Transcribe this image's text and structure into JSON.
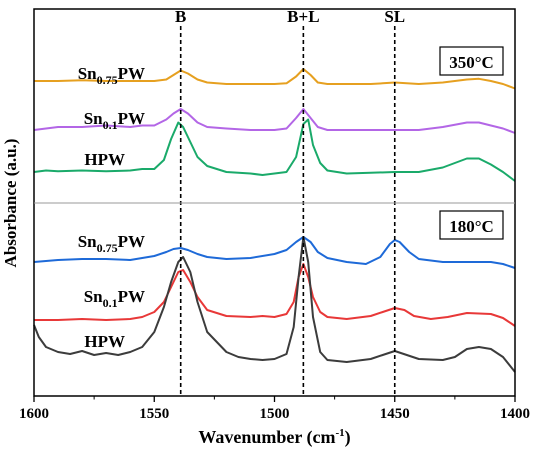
{
  "chart_data": {
    "type": "line",
    "xlabel": "Wavenumber (cm",
    "xlabel_sup": "-1",
    "xlabel_tail": ")",
    "ylabel": "Absorbance (a.u.)",
    "xlim": [
      1600,
      1400
    ],
    "x_reversed": true,
    "xticks": [
      1600,
      1550,
      1500,
      1450,
      1400
    ],
    "y_tick_labels": false,
    "grid": false,
    "peak_markers": [
      {
        "label": "B",
        "x": 1539
      },
      {
        "label": "B+L",
        "x": 1488
      },
      {
        "label": "SL",
        "x": 1450
      }
    ],
    "panels": [
      {
        "temperature_label": "350°C",
        "series": [
          {
            "name_base": "Sn",
            "name_sub": "0.75",
            "name_tail": "PW",
            "color": "#E6A020",
            "x": [
              1600,
              1590,
              1580,
              1570,
              1560,
              1550,
              1545,
              1542,
              1539,
              1536,
              1532,
              1528,
              1520,
              1510,
              1500,
              1495,
              1491,
              1488,
              1485,
              1482,
              1478,
              1470,
              1460,
              1455,
              1450,
              1445,
              1440,
              1430,
              1420,
              1415,
              1410,
              1405,
              1400
            ],
            "y": [
              0.02,
              0.02,
              0.025,
              0.02,
              0.02,
              0.02,
              0.03,
              0.06,
              0.09,
              0.07,
              0.03,
              0.01,
              0.0,
              0.0,
              0.0,
              0.005,
              0.05,
              0.1,
              0.06,
              0.01,
              0.0,
              0.0,
              0.0,
              0.005,
              0.01,
              0.005,
              0.0,
              0.01,
              0.03,
              0.035,
              0.02,
              0.0,
              -0.03
            ]
          },
          {
            "name_base": "Sn",
            "name_sub": "0.1",
            "name_tail": "PW",
            "color": "#B366E6",
            "x": [
              1600,
              1590,
              1580,
              1570,
              1560,
              1555,
              1550,
              1545,
              1542,
              1539,
              1536,
              1532,
              1528,
              1520,
              1510,
              1500,
              1495,
              1491,
              1488,
              1485,
              1482,
              1478,
              1470,
              1460,
              1450,
              1440,
              1430,
              1420,
              1415,
              1410,
              1405,
              1400
            ],
            "y": [
              0.0,
              0.02,
              0.02,
              0.03,
              0.02,
              0.03,
              0.03,
              0.07,
              0.11,
              0.14,
              0.11,
              0.05,
              0.02,
              0.01,
              0.0,
              0.0,
              0.01,
              0.08,
              0.14,
              0.08,
              0.02,
              0.0,
              0.0,
              0.0,
              0.0,
              0.0,
              0.02,
              0.05,
              0.05,
              0.03,
              0.01,
              -0.02
            ]
          },
          {
            "name_base": "HPW",
            "name_sub": "",
            "name_tail": "",
            "color": "#1AAA6A",
            "x": [
              1600,
              1595,
              1590,
              1580,
              1570,
              1560,
              1555,
              1550,
              1546,
              1543,
              1540,
              1538,
              1535,
              1532,
              1528,
              1520,
              1510,
              1505,
              1500,
              1495,
              1491,
              1488,
              1486,
              1484,
              1481,
              1478,
              1470,
              1460,
              1450,
              1440,
              1430,
              1420,
              1415,
              1410,
              1405,
              1400
            ],
            "y": [
              0.0,
              0.01,
              0.005,
              0.01,
              0.005,
              0.01,
              0.02,
              0.02,
              0.08,
              0.22,
              0.33,
              0.3,
              0.2,
              0.1,
              0.04,
              0.0,
              -0.01,
              -0.02,
              -0.01,
              0.0,
              0.1,
              0.32,
              0.35,
              0.18,
              0.06,
              0.01,
              -0.01,
              -0.005,
              0.0,
              0.0,
              0.03,
              0.09,
              0.09,
              0.05,
              0.0,
              -0.06
            ]
          }
        ]
      },
      {
        "temperature_label": "180°C",
        "series": [
          {
            "name_base": "Sn",
            "name_sub": "0.75",
            "name_tail": "PW",
            "color": "#1E6AD8",
            "x": [
              1600,
              1590,
              1580,
              1570,
              1560,
              1555,
              1550,
              1545,
              1542,
              1539,
              1536,
              1532,
              1528,
              1520,
              1510,
              1500,
              1495,
              1491,
              1488,
              1485,
              1482,
              1478,
              1470,
              1462,
              1456,
              1452,
              1450,
              1448,
              1444,
              1440,
              1430,
              1420,
              1410,
              1405,
              1400
            ],
            "y": [
              0.0,
              0.02,
              0.03,
              0.03,
              0.02,
              0.04,
              0.06,
              0.1,
              0.13,
              0.14,
              0.12,
              0.08,
              0.05,
              0.03,
              0.04,
              0.08,
              0.12,
              0.2,
              0.25,
              0.2,
              0.1,
              0.04,
              0.0,
              -0.02,
              0.05,
              0.18,
              0.22,
              0.2,
              0.1,
              0.03,
              0.0,
              0.0,
              0.0,
              -0.02,
              -0.06
            ]
          },
          {
            "name_base": "Sn",
            "name_sub": "0.1",
            "name_tail": "PW",
            "color": "#E83838",
            "x": [
              1600,
              1590,
              1580,
              1570,
              1560,
              1555,
              1550,
              1546,
              1543,
              1540,
              1538,
              1535,
              1532,
              1528,
              1520,
              1510,
              1505,
              1500,
              1495,
              1492,
              1490,
              1488,
              1486,
              1484,
              1481,
              1478,
              1470,
              1460,
              1455,
              1450,
              1446,
              1442,
              1435,
              1428,
              1420,
              1410,
              1405,
              1400
            ],
            "y": [
              0.02,
              0.02,
              0.03,
              0.02,
              0.03,
              0.05,
              0.1,
              0.2,
              0.35,
              0.5,
              0.52,
              0.4,
              0.25,
              0.12,
              0.06,
              0.05,
              0.06,
              0.05,
              0.08,
              0.2,
              0.45,
              0.58,
              0.45,
              0.25,
              0.1,
              0.05,
              0.03,
              0.06,
              0.1,
              0.14,
              0.12,
              0.06,
              0.03,
              0.05,
              0.09,
              0.08,
              0.04,
              -0.04
            ]
          },
          {
            "name_base": "HPW",
            "name_sub": "",
            "name_tail": "",
            "color": "#3C3C3C",
            "x": [
              1600,
              1598,
              1595,
              1590,
              1585,
              1580,
              1575,
              1570,
              1565,
              1560,
              1555,
              1550,
              1546,
              1543,
              1540,
              1538,
              1535,
              1532,
              1528,
              1520,
              1515,
              1510,
              1505,
              1500,
              1495,
              1492,
              1490,
              1488,
              1486,
              1484,
              1481,
              1478,
              1470,
              1460,
              1455,
              1450,
              1445,
              1440,
              1430,
              1425,
              1420,
              1415,
              1410,
              1405,
              1400
            ],
            "y": [
              0.62,
              0.5,
              0.4,
              0.35,
              0.33,
              0.36,
              0.32,
              0.34,
              0.32,
              0.35,
              0.4,
              0.55,
              0.8,
              1.05,
              1.25,
              1.3,
              1.15,
              0.85,
              0.55,
              0.35,
              0.3,
              0.28,
              0.27,
              0.28,
              0.33,
              0.6,
              1.1,
              1.5,
              1.25,
              0.7,
              0.35,
              0.27,
              0.25,
              0.28,
              0.32,
              0.36,
              0.32,
              0.28,
              0.27,
              0.3,
              0.38,
              0.4,
              0.38,
              0.3,
              0.15
            ]
          }
        ]
      }
    ]
  }
}
